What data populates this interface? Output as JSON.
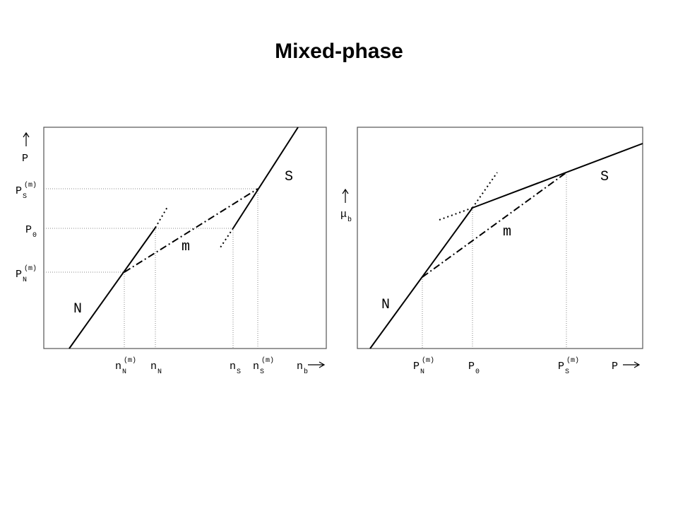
{
  "title": "Mixed-phase",
  "left_diagram": {
    "y_axis": {
      "main": "P"
    },
    "y_labels": [
      {
        "main": "P",
        "sub": "S",
        "sup": "(m)"
      },
      {
        "main": "P",
        "sub": "0"
      },
      {
        "main": "P",
        "sub": "N",
        "sup": "(m)"
      }
    ],
    "x_labels": [
      {
        "main": "n",
        "sub": "N",
        "sup": "(m)"
      },
      {
        "main": "n",
        "sub": "N"
      },
      {
        "main": "n",
        "sub": "S"
      },
      {
        "main": "n",
        "sub": "S",
        "sup": "(m)"
      }
    ],
    "x_axis": {
      "main": "n",
      "sub": "b"
    },
    "regions": [
      "N",
      "S",
      "m"
    ]
  },
  "right_diagram": {
    "y_axis": {
      "main": "μ",
      "sub": "b"
    },
    "x_labels": [
      {
        "main": "P",
        "sub": "N",
        "sup": "(m)"
      },
      {
        "main": "P",
        "sub": "0"
      },
      {
        "main": "P",
        "sub": "S",
        "sup": "(m)"
      }
    ],
    "x_axis": {
      "main": "P"
    },
    "regions": [
      "N",
      "S",
      "m"
    ]
  }
}
